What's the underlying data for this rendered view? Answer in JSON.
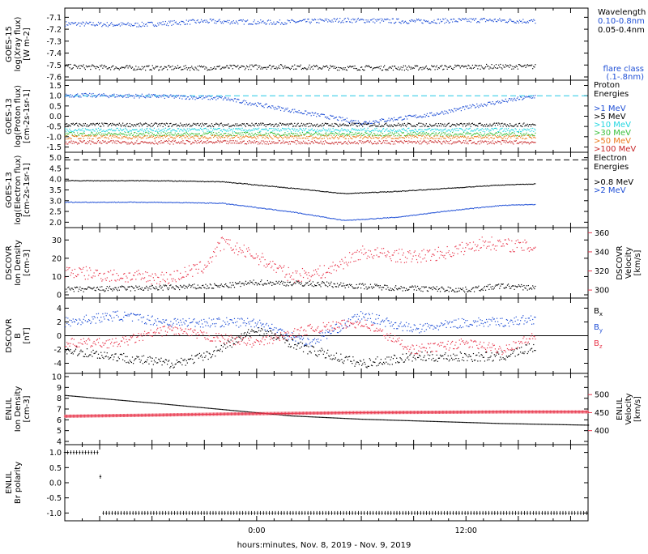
{
  "page": {
    "xaxis_label": "hours:minutes, Nov.  8, 2019 - Nov.  9, 2019",
    "xticks": [
      "0:00",
      "12:00"
    ]
  },
  "colors": {
    "black": "#000000",
    "blue": "#1f4fd6",
    "red": "#e8344a",
    "cyan": "#21d6e0",
    "green": "#39c03a",
    "orange": "#ec7a1c",
    "darkred": "#c8282a",
    "dashed_cyan": "#22c8e6"
  },
  "chart_data": [
    {
      "id": "xray",
      "type": "scatter",
      "ylabel": [
        "GOES-15",
        "log(Xray flux)",
        "[W m-2]"
      ],
      "yticks": [
        "-7.1",
        "-7.2",
        "-7.3",
        "-7.4",
        "-7.5",
        "-7.6"
      ],
      "ylim": [
        -7.6,
        -7.05
      ],
      "xlim_hours": [
        -11,
        19
      ],
      "series": [
        {
          "name": "0.10-0.8nm",
          "color": "#1f4fd6",
          "x_hours": [
            -11,
            -7,
            -3,
            1,
            5,
            9,
            13,
            16
          ],
          "values": [
            -7.15,
            -7.16,
            -7.13,
            -7.14,
            -7.12,
            -7.13,
            -7.12,
            -7.13
          ]
        },
        {
          "name": "0.05-0.4nm",
          "color": "#000000",
          "x_hours": [
            -11,
            -7,
            -3,
            1,
            5,
            9,
            13,
            16
          ],
          "values": [
            -7.51,
            -7.52,
            -7.52,
            -7.51,
            -7.52,
            -7.52,
            -7.51,
            -7.51
          ]
        }
      ],
      "legend": {
        "title": "Wavelength",
        "items": [
          "0.10-0.8nm",
          "0.05-0.4nm"
        ],
        "note": [
          "flare class",
          "(.1-.8nm)"
        ]
      }
    },
    {
      "id": "protons",
      "type": "scatter",
      "ylabel": [
        "GOES-13",
        "log(Proton flux)",
        "[cm-2s-1sr-1]"
      ],
      "yticks": [
        "1.5",
        "1.0",
        "0.5",
        "0.0",
        "-0.5",
        "-1.0",
        "-1.5"
      ],
      "ylim": [
        -1.6,
        1.6
      ],
      "reference_line": 1.0,
      "series": [
        {
          "name": ">1 MeV",
          "color": "#1f4fd6",
          "x_hours": [
            -11,
            -6,
            -2,
            2,
            6,
            10,
            13,
            16
          ],
          "values": [
            1.05,
            1.0,
            0.9,
            0.3,
            -0.3,
            0.1,
            0.6,
            1.0
          ]
        },
        {
          "name": ">5 MeV",
          "color": "#000000",
          "x_hours": [
            -11,
            16
          ],
          "values": [
            -0.4,
            -0.4
          ]
        },
        {
          "name": ">10 MeV",
          "color": "#21d6e0",
          "x_hours": [
            -11,
            16
          ],
          "values": [
            -0.65,
            -0.65
          ]
        },
        {
          "name": ">30 MeV",
          "color": "#39c03a",
          "x_hours": [
            -11,
            16
          ],
          "values": [
            -0.85,
            -0.85
          ]
        },
        {
          "name": ">50 MeV",
          "color": "#ec7a1c",
          "x_hours": [
            -11,
            16
          ],
          "values": [
            -1.0,
            -1.0
          ]
        },
        {
          "name": ">100 MeV",
          "color": "#c8282a",
          "x_hours": [
            -11,
            16
          ],
          "values": [
            -1.25,
            -1.25
          ]
        }
      ],
      "legend": {
        "title": [
          "Proton",
          "Energies"
        ],
        "items": [
          ">1 MeV",
          ">5 MeV",
          ">10 MeV",
          ">30 MeV",
          ">50 MeV",
          ">100 MeV"
        ]
      }
    },
    {
      "id": "electrons",
      "type": "line",
      "ylabel": [
        "GOES-13",
        "log(Electron flux)",
        "[cm-2s-1sr-1]"
      ],
      "yticks": [
        "5.0",
        "4.5",
        "4.0",
        "3.5",
        "3.0",
        "2.5",
        "2.0"
      ],
      "ylim": [
        1.9,
        5.1
      ],
      "reference_line": 4.9,
      "series": [
        {
          "name": ">0.8 MeV",
          "color": "#000000",
          "x_hours": [
            -11,
            -6,
            -2,
            2,
            5,
            8,
            11,
            14,
            16
          ],
          "values": [
            3.95,
            3.95,
            3.9,
            3.6,
            3.35,
            3.45,
            3.6,
            3.75,
            3.8
          ]
        },
        {
          "name": ">2 MeV",
          "color": "#1f4fd6",
          "x_hours": [
            -11,
            -6,
            -2,
            2,
            5,
            8,
            11,
            14,
            16
          ],
          "values": [
            2.95,
            2.95,
            2.9,
            2.5,
            2.1,
            2.25,
            2.55,
            2.8,
            2.85
          ]
        }
      ],
      "legend": {
        "title": [
          "Electron",
          "Energies"
        ],
        "items": [
          ">0.8 MeV",
          ">2 MeV"
        ]
      }
    },
    {
      "id": "dscovr_plasma",
      "type": "scatter",
      "ylabel": [
        "DSCOVR",
        "Ion Density",
        "[cm-3]"
      ],
      "yticks": [
        "30",
        "20",
        "10",
        "0"
      ],
      "ylim": [
        0,
        35
      ],
      "right_ylabel": [
        "DSCOVR",
        "Velocity",
        "[km/s]"
      ],
      "right_yticks": [
        "360",
        "340",
        "320",
        "300"
      ],
      "right_ylim": [
        295,
        362
      ],
      "series": [
        {
          "name": "density",
          "color": "#000000",
          "x_hours": [
            -11,
            -6,
            -2,
            0,
            4,
            8,
            12,
            14,
            16
          ],
          "values": [
            3,
            4,
            5,
            7,
            6,
            4,
            3,
            5,
            4
          ]
        },
        {
          "name": "velocity",
          "color": "#e8344a",
          "x_hours": [
            -11,
            -8,
            -5,
            -3,
            -2,
            0,
            2,
            4,
            6,
            9,
            11,
            13,
            16
          ],
          "values": [
            320,
            315,
            313,
            325,
            350,
            335,
            315,
            320,
            340,
            335,
            340,
            350,
            345
          ]
        }
      ]
    },
    {
      "id": "dscovr_mag",
      "type": "scatter",
      "ylabel": [
        "DSCOVR",
        "B",
        "[nT]"
      ],
      "yticks": [
        "4",
        "2",
        "0",
        "-2",
        "-4"
      ],
      "ylim": [
        -5,
        5
      ],
      "series": [
        {
          "name": "Bx",
          "color": "#000000",
          "x_hours": [
            -11,
            -8,
            -5,
            -3,
            0,
            3,
            6,
            9,
            12,
            14,
            16
          ],
          "values": [
            -2,
            -3,
            -4,
            -3,
            1,
            -2,
            -4,
            -3,
            -3,
            -3,
            -1.5
          ]
        },
        {
          "name": "By",
          "color": "#1f4fd6",
          "x_hours": [
            -11,
            -8,
            -5,
            -3,
            0,
            3,
            6,
            9,
            12,
            14,
            16
          ],
          "values": [
            2,
            3,
            2,
            2,
            2,
            -1,
            3,
            1,
            2,
            2,
            2.5
          ]
        },
        {
          "name": "Bz",
          "color": "#e8344a",
          "x_hours": [
            -11,
            -8,
            -5,
            -3,
            0,
            3,
            6,
            9,
            12,
            14,
            16
          ],
          "values": [
            -1,
            -1,
            1,
            0,
            -1,
            1,
            2,
            -2,
            -1,
            -2,
            0
          ]
        }
      ],
      "legend": {
        "items": [
          "Bx",
          "By",
          "Bz"
        ]
      }
    },
    {
      "id": "enlil_plasma",
      "type": "line",
      "ylabel": [
        "ENLIL",
        "Ion Density",
        "[cm-3]"
      ],
      "yticks": [
        "10",
        "9",
        "8",
        "7",
        "6",
        "5",
        "4"
      ],
      "ylim": [
        4,
        10
      ],
      "right_ylabel": [
        "ENLIL",
        "Velocity",
        "[km/s]"
      ],
      "right_yticks": [
        "500",
        "450",
        "400"
      ],
      "right_ylim": [
        370,
        550
      ],
      "series": [
        {
          "name": "density",
          "color": "#000000",
          "x_hours": [
            -11,
            -6,
            -2,
            2,
            6,
            10,
            14,
            19
          ],
          "values": [
            8.3,
            7.6,
            7.0,
            6.4,
            6.1,
            5.9,
            5.7,
            5.55
          ]
        },
        {
          "name": "velocity",
          "color": "#e8344a",
          "x_hours": [
            -11,
            -6,
            -2,
            2,
            6,
            10,
            14,
            19
          ],
          "values": [
            440,
            443,
            446,
            448,
            450,
            451,
            452,
            452
          ]
        }
      ]
    },
    {
      "id": "enlil_polarity",
      "type": "line",
      "ylabel": [
        "ENLIL",
        "Br polarity"
      ],
      "yticks": [
        "1.0",
        "0.5",
        "0.0",
        "-0.5",
        "-1.0"
      ],
      "ylim": [
        -1.15,
        1.15
      ],
      "series": [
        {
          "name": "polarity",
          "color": "#000000",
          "x_hours": [
            -11,
            -9,
            -8.9,
            19
          ],
          "values": [
            1,
            1,
            -1,
            -1
          ]
        }
      ]
    }
  ]
}
